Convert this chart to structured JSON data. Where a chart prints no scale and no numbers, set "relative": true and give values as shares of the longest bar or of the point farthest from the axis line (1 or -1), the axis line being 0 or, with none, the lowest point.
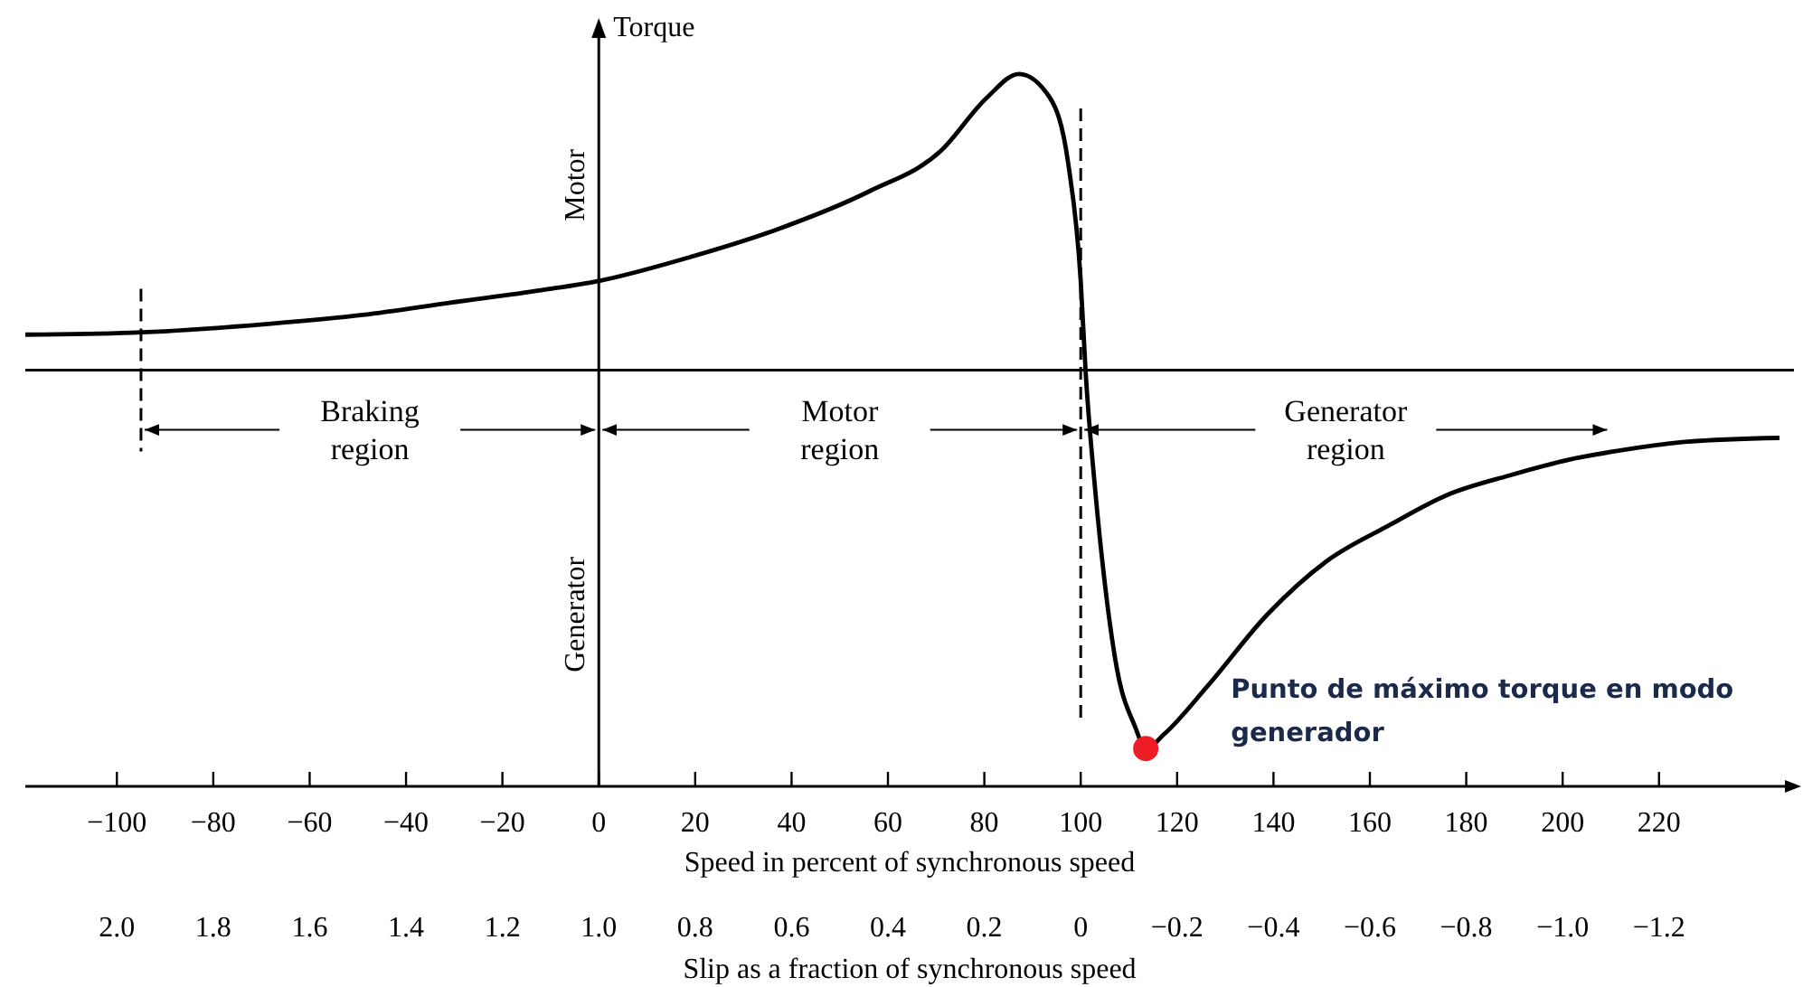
{
  "chart_data": {
    "type": "line",
    "relative": true,
    "ylabel": "Torque",
    "xlabel": "Speed in percent of synchronous speed",
    "x2label": "Slip as a fraction of synchronous speed",
    "xlim": [
      -119,
      248
    ],
    "xticks": [
      {
        "value": -100,
        "label": "−100"
      },
      {
        "value": -80,
        "label": "−80"
      },
      {
        "value": -60,
        "label": "−60"
      },
      {
        "value": -40,
        "label": "−40"
      },
      {
        "value": -20,
        "label": "−20"
      },
      0,
      20,
      40,
      60,
      80,
      100,
      120,
      140,
      160,
      180,
      200,
      220
    ],
    "x2lim": [
      2.19,
      -1.48
    ],
    "x2ticks": [
      {
        "value": 2,
        "label": "2.0"
      },
      1.8,
      1.6,
      1.4,
      1.2,
      {
        "value": 1,
        "label": "1.0"
      },
      0.8,
      0.6,
      0.4,
      0.2,
      0,
      {
        "value": -0.2,
        "label": "−0.2"
      },
      {
        "value": -0.4,
        "label": "−0.4"
      },
      {
        "value": -0.6,
        "label": "−0.6"
      },
      {
        "value": -0.8,
        "label": "−0.8"
      },
      {
        "value": -1,
        "label": "−1.0"
      },
      {
        "value": -1.2,
        "label": "−1.2"
      }
    ],
    "series": [
      {
        "color": "#000000",
        "marker": "none",
        "x": [
          -119,
          -97,
          -68,
          -49,
          -30.5,
          -11.7,
          0,
          18.4,
          37.2,
          56,
          71,
          80.5,
          87.2,
          93.6,
          97.4,
          100,
          101,
          103,
          104.9,
          107.5,
          111.3,
          113.5,
          117.3,
          126.3,
          138.7,
          151,
          164,
          176,
          189,
          201.5,
          214,
          226,
          245
        ],
        "values": [
          0.094,
          0.099,
          0.123,
          0.146,
          0.179,
          0.212,
          0.236,
          0.297,
          0.373,
          0.472,
          0.58,
          0.72,
          0.783,
          0.72,
          0.547,
          0.236,
          0,
          -0.316,
          -0.552,
          -0.788,
          -0.943,
          -1,
          -0.962,
          -0.835,
          -0.646,
          -0.505,
          -0.41,
          -0.33,
          -0.278,
          -0.236,
          -0.208,
          -0.189,
          -0.179
        ]
      },
      {
        "type": "scatter",
        "color": "#ee1c24",
        "marker": "circle",
        "x": [
          113.5
        ],
        "values": [
          -1
        ]
      }
    ],
    "ref_lines": [
      {
        "axis": "x",
        "value": -95,
        "line_style": "dashed"
      },
      {
        "axis": "x",
        "value": 100,
        "line_style": "dashed"
      }
    ],
    "annotations": [
      "Braking region",
      "Motor region",
      "Generator region",
      "Motor",
      "Generator",
      "Punto de máximo torque en modo generador"
    ]
  }
}
